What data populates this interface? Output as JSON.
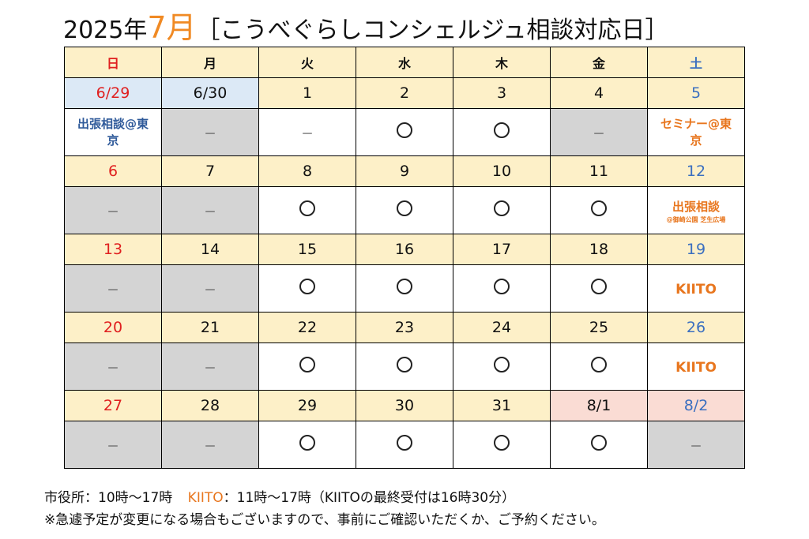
{
  "title": {
    "year": "2025年",
    "month": "7月",
    "subject": "［こうべぐらしコンシェルジュ相談対応日］"
  },
  "weekdays": [
    "日",
    "月",
    "火",
    "水",
    "木",
    "金",
    "土"
  ],
  "weeks": [
    {
      "dates": [
        "6/29",
        "6/30",
        "1",
        "2",
        "3",
        "4",
        "5"
      ],
      "status": [
        "出張相談@東京",
        "－",
        "－",
        "○",
        "○",
        "－",
        "セミナー@東京"
      ]
    },
    {
      "dates": [
        "6",
        "7",
        "8",
        "9",
        "10",
        "11",
        "12"
      ],
      "status": [
        "－",
        "－",
        "○",
        "○",
        "○",
        "○",
        "出張相談"
      ],
      "note_sat": "@御崎公園 芝生広場"
    },
    {
      "dates": [
        "13",
        "14",
        "15",
        "16",
        "17",
        "18",
        "19"
      ],
      "status": [
        "－",
        "－",
        "○",
        "○",
        "○",
        "○",
        "KIITO"
      ]
    },
    {
      "dates": [
        "20",
        "21",
        "22",
        "23",
        "24",
        "25",
        "26"
      ],
      "status": [
        "－",
        "－",
        "○",
        "○",
        "○",
        "○",
        "KIITO"
      ]
    },
    {
      "dates": [
        "27",
        "28",
        "29",
        "30",
        "31",
        "8/1",
        "8/2"
      ],
      "status": [
        "－",
        "－",
        "○",
        "○",
        "○",
        "○",
        "－"
      ]
    }
  ],
  "footer": {
    "line1_a": "市役所：10時～17時",
    "line1_kiito": "KIITO",
    "line1_b": "：11時～17時（KIITOの最終受付は16時30分）",
    "line2": "※急遽予定が変更になる場合もございますので、事前にご確認いただくか、ご予約ください。"
  },
  "colors": {
    "header_bg": "#fdf0c8",
    "prev_month_bg": "#dce9f6",
    "next_month_bg": "#fadcd4",
    "closed_bg": "#d4d4d4",
    "sunday": "#e02020",
    "saturday": "#3b6fc0",
    "accent_orange": "#f08a24"
  }
}
